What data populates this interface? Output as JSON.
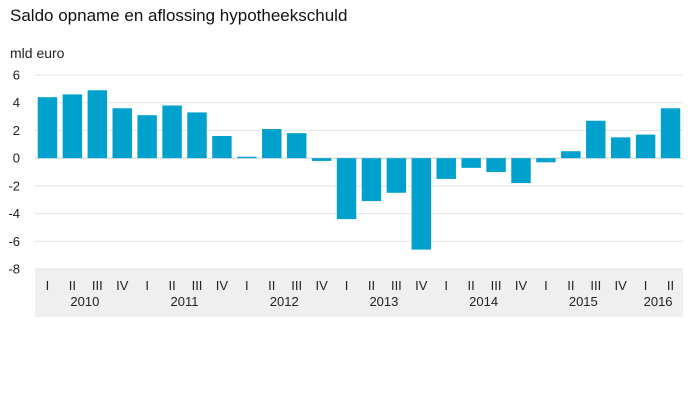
{
  "chart_data": {
    "type": "bar",
    "title": "Saldo opname en aflossing hypotheekschuld",
    "ylabel": "mld euro",
    "xlabel": "",
    "ylim": [
      -8,
      6
    ],
    "yticks": [
      6,
      4,
      2,
      0,
      -2,
      -4,
      -6,
      -8
    ],
    "grid": true,
    "bar_color": "#00a1cd",
    "axis_band_color": "#efefef",
    "categories": [
      {
        "quarter": "I",
        "year": "2010"
      },
      {
        "quarter": "II",
        "year": "2010"
      },
      {
        "quarter": "III",
        "year": "2010"
      },
      {
        "quarter": "IV",
        "year": "2010"
      },
      {
        "quarter": "I",
        "year": "2011"
      },
      {
        "quarter": "II",
        "year": "2011"
      },
      {
        "quarter": "III",
        "year": "2011"
      },
      {
        "quarter": "IV",
        "year": "2011"
      },
      {
        "quarter": "I",
        "year": "2012"
      },
      {
        "quarter": "II",
        "year": "2012"
      },
      {
        "quarter": "III",
        "year": "2012"
      },
      {
        "quarter": "IV",
        "year": "2012"
      },
      {
        "quarter": "I",
        "year": "2013"
      },
      {
        "quarter": "II",
        "year": "2013"
      },
      {
        "quarter": "III",
        "year": "2013"
      },
      {
        "quarter": "IV",
        "year": "2013"
      },
      {
        "quarter": "I",
        "year": "2014"
      },
      {
        "quarter": "II",
        "year": "2014"
      },
      {
        "quarter": "III",
        "year": "2014"
      },
      {
        "quarter": "IV",
        "year": "2014"
      },
      {
        "quarter": "I",
        "year": "2015"
      },
      {
        "quarter": "II",
        "year": "2015"
      },
      {
        "quarter": "III",
        "year": "2015"
      },
      {
        "quarter": "IV",
        "year": "2015"
      },
      {
        "quarter": "I",
        "year": "2016"
      },
      {
        "quarter": "II",
        "year": "2016"
      }
    ],
    "years": [
      "2010",
      "2011",
      "2012",
      "2013",
      "2014",
      "2015",
      "2016"
    ],
    "values": [
      4.4,
      4.6,
      4.9,
      3.6,
      3.1,
      3.8,
      3.3,
      1.6,
      0.1,
      2.1,
      1.8,
      -0.2,
      -4.4,
      -3.1,
      -2.5,
      -6.6,
      -1.5,
      -0.7,
      -1.0,
      -1.8,
      -0.3,
      0.5,
      2.7,
      1.5,
      1.7,
      3.6
    ]
  }
}
